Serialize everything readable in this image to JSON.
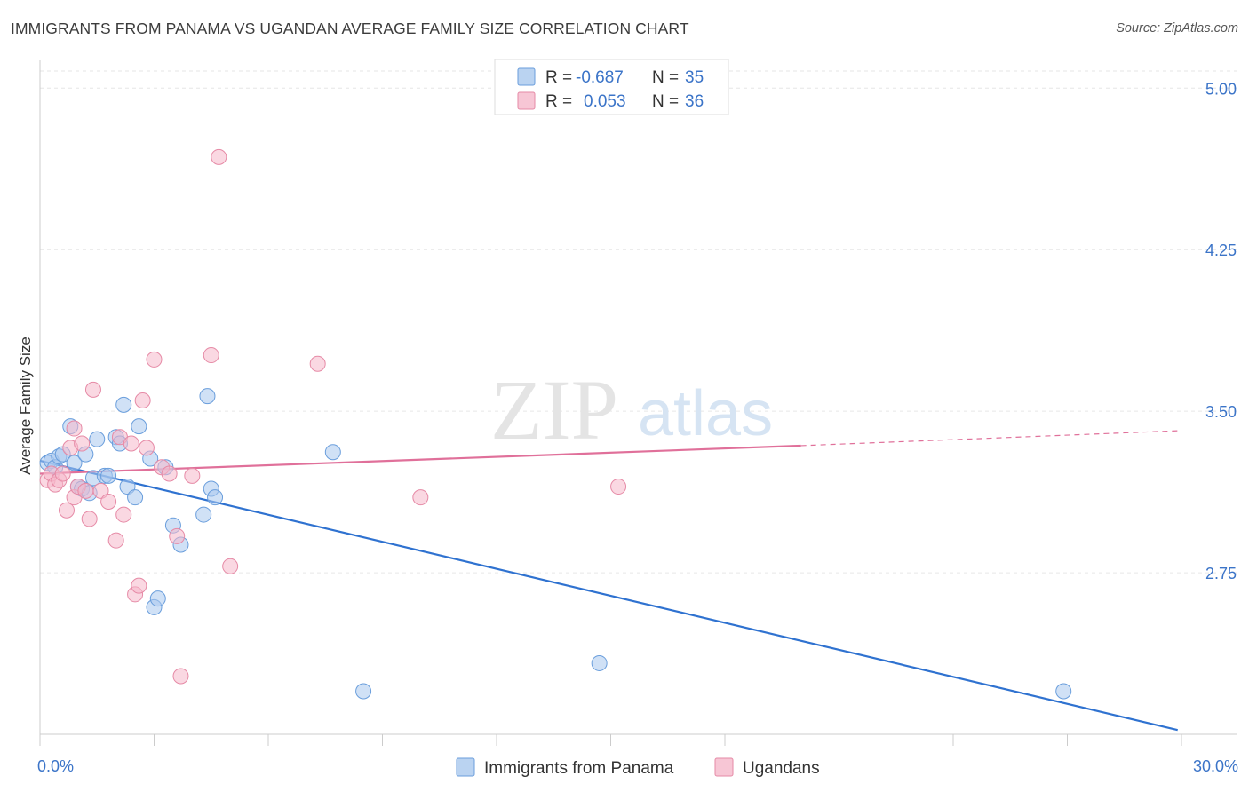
{
  "header": {
    "title": "IMMIGRANTS FROM PANAMA VS UGANDAN AVERAGE FAMILY SIZE CORRELATION CHART",
    "source": "Source: ZipAtlas.com"
  },
  "watermark": {
    "zip": "ZIP",
    "atlas": "atlas"
  },
  "legend": {
    "r_label": "R =",
    "n_label": "N =",
    "rows": [
      {
        "r": "-0.687",
        "n": "35",
        "color": "#a9c8ee"
      },
      {
        "r": "0.053",
        "n": "36",
        "color": "#f5b8ca"
      }
    ]
  },
  "chart_data": {
    "type": "scatter",
    "title": "IMMIGRANTS FROM PANAMA VS UGANDAN AVERAGE FAMILY SIZE CORRELATION CHART",
    "xlabel": "",
    "ylabel": "Average Family Size",
    "xlim": [
      0,
      30
    ],
    "ylim": [
      2.0,
      5.1
    ],
    "x_tick_labels": [
      "0.0%",
      "30.0%"
    ],
    "y_ticks": [
      2.75,
      3.5,
      4.25,
      5.0
    ],
    "y_tick_labels": [
      "2.75",
      "3.50",
      "4.25",
      "5.00"
    ],
    "grid": true,
    "legend_position": "top-center",
    "series": [
      {
        "name": "Immigrants from Panama",
        "color": "#a9c8ee",
        "stroke": "#6a9edc",
        "line_color": "#2f72d0",
        "trend": {
          "x": [
            0.0,
            29.9
          ],
          "y": [
            3.27,
            2.02
          ]
        },
        "points": [
          [
            0.2,
            3.26
          ],
          [
            0.3,
            3.27
          ],
          [
            0.4,
            3.24
          ],
          [
            0.5,
            3.29
          ],
          [
            0.6,
            3.3
          ],
          [
            0.8,
            3.43
          ],
          [
            0.9,
            3.26
          ],
          [
            1.0,
            3.15
          ],
          [
            1.1,
            3.14
          ],
          [
            1.2,
            3.3
          ],
          [
            1.3,
            3.12
          ],
          [
            1.4,
            3.19
          ],
          [
            1.5,
            3.37
          ],
          [
            1.7,
            3.2
          ],
          [
            1.8,
            3.2
          ],
          [
            2.0,
            3.38
          ],
          [
            2.1,
            3.35
          ],
          [
            2.2,
            3.53
          ],
          [
            2.3,
            3.15
          ],
          [
            2.5,
            3.1
          ],
          [
            2.6,
            3.43
          ],
          [
            2.9,
            3.28
          ],
          [
            3.0,
            2.59
          ],
          [
            3.1,
            2.63
          ],
          [
            3.3,
            3.24
          ],
          [
            3.5,
            2.97
          ],
          [
            3.7,
            2.88
          ],
          [
            4.3,
            3.02
          ],
          [
            4.4,
            3.57
          ],
          [
            4.5,
            3.14
          ],
          [
            4.6,
            3.1
          ],
          [
            7.7,
            3.31
          ],
          [
            8.5,
            2.2
          ],
          [
            14.7,
            2.33
          ],
          [
            26.9,
            2.2
          ]
        ]
      },
      {
        "name": "Ugandans",
        "color": "#f5b8ca",
        "stroke": "#e68aa6",
        "line_color": "#e0709a",
        "trend": {
          "x": [
            0.0,
            20.0
          ],
          "y": [
            3.21,
            3.34
          ]
        },
        "trend_dashed": {
          "x": [
            20.0,
            30.0
          ],
          "y": [
            3.34,
            3.41
          ]
        },
        "points": [
          [
            0.2,
            3.18
          ],
          [
            0.3,
            3.21
          ],
          [
            0.4,
            3.16
          ],
          [
            0.5,
            3.18
          ],
          [
            0.6,
            3.21
          ],
          [
            0.7,
            3.04
          ],
          [
            0.8,
            3.33
          ],
          [
            0.9,
            3.1
          ],
          [
            1.0,
            3.15
          ],
          [
            1.1,
            3.35
          ],
          [
            1.2,
            3.13
          ],
          [
            1.3,
            3.0
          ],
          [
            1.4,
            3.6
          ],
          [
            1.6,
            3.13
          ],
          [
            1.8,
            3.08
          ],
          [
            2.0,
            2.9
          ],
          [
            2.1,
            3.38
          ],
          [
            2.2,
            3.02
          ],
          [
            2.4,
            3.35
          ],
          [
            2.5,
            2.65
          ],
          [
            2.6,
            2.69
          ],
          [
            2.7,
            3.55
          ],
          [
            2.8,
            3.33
          ],
          [
            3.0,
            3.74
          ],
          [
            3.2,
            3.24
          ],
          [
            3.4,
            3.21
          ],
          [
            3.6,
            2.92
          ],
          [
            3.7,
            2.27
          ],
          [
            4.0,
            3.2
          ],
          [
            4.5,
            3.76
          ],
          [
            4.7,
            4.68
          ],
          [
            5.0,
            2.78
          ],
          [
            7.3,
            3.72
          ],
          [
            10.0,
            3.1
          ],
          [
            15.2,
            3.15
          ],
          [
            0.9,
            3.42
          ]
        ]
      }
    ]
  }
}
